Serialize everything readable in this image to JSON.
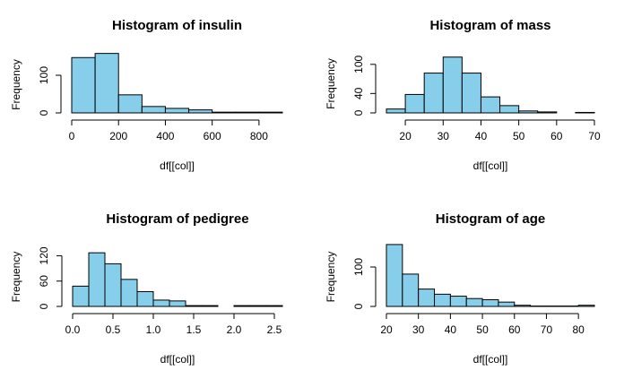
{
  "figure": {
    "bar_color": "#87CEEB",
    "outline_color": "#000000"
  },
  "chart_data": [
    {
      "type": "bar",
      "title": "Histogram of insulin",
      "xlabel": "df[[col]]",
      "ylabel": "Frequency",
      "bin_edges": [
        0,
        100,
        200,
        300,
        400,
        500,
        600,
        700,
        800,
        900
      ],
      "values": [
        147,
        158,
        48,
        17,
        12,
        8,
        2,
        2,
        2
      ],
      "xlim": [
        0,
        900
      ],
      "ylim": [
        0,
        150
      ],
      "xticks": [
        0,
        200,
        400,
        600,
        800
      ],
      "yticks": [
        0,
        100
      ],
      "grid": false
    },
    {
      "type": "bar",
      "title": "Histogram of mass",
      "xlabel": "df[[col]]",
      "ylabel": "Frequency",
      "bin_edges": [
        15,
        20,
        25,
        30,
        35,
        40,
        45,
        50,
        55,
        60,
        65,
        70
      ],
      "values": [
        8,
        38,
        82,
        115,
        82,
        33,
        15,
        4,
        2,
        0,
        1
      ],
      "xlim": [
        15,
        70
      ],
      "ylim": [
        0,
        120
      ],
      "xticks": [
        20,
        30,
        40,
        50,
        60,
        70
      ],
      "yticks": [
        0,
        40,
        100
      ],
      "grid": false
    },
    {
      "type": "bar",
      "title": "Histogram of pedigree",
      "xlabel": "df[[col]]",
      "ylabel": "Frequency",
      "bin_edges": [
        0,
        0.2,
        0.4,
        0.6,
        0.8,
        1.0,
        1.2,
        1.4,
        1.6,
        1.8,
        2.0,
        2.2,
        2.4,
        2.6
      ],
      "values": [
        48,
        127,
        101,
        64,
        35,
        15,
        13,
        2,
        2,
        0,
        2,
        2,
        2
      ],
      "xlim": [
        0,
        2.6
      ],
      "ylim": [
        0,
        140
      ],
      "xticks": [
        0.0,
        0.5,
        1.0,
        1.5,
        2.0,
        2.5
      ],
      "xtick_labels": [
        "0.0",
        "0.5",
        "1.0",
        "1.5",
        "2.0",
        "2.5"
      ],
      "yticks": [
        0,
        60,
        120
      ],
      "grid": false
    },
    {
      "type": "bar",
      "title": "Histogram of age",
      "xlabel": "df[[col]]",
      "ylabel": "Frequency",
      "bin_edges": [
        20,
        25,
        30,
        35,
        40,
        45,
        50,
        55,
        60,
        65,
        70,
        75,
        80,
        85
      ],
      "values": [
        157,
        82,
        44,
        31,
        26,
        20,
        17,
        11,
        3,
        1,
        1,
        1,
        3
      ],
      "xlim": [
        20,
        85
      ],
      "ylim": [
        0,
        150
      ],
      "xticks": [
        20,
        30,
        40,
        50,
        60,
        70,
        80
      ],
      "yticks": [
        0,
        100
      ],
      "grid": false
    }
  ]
}
